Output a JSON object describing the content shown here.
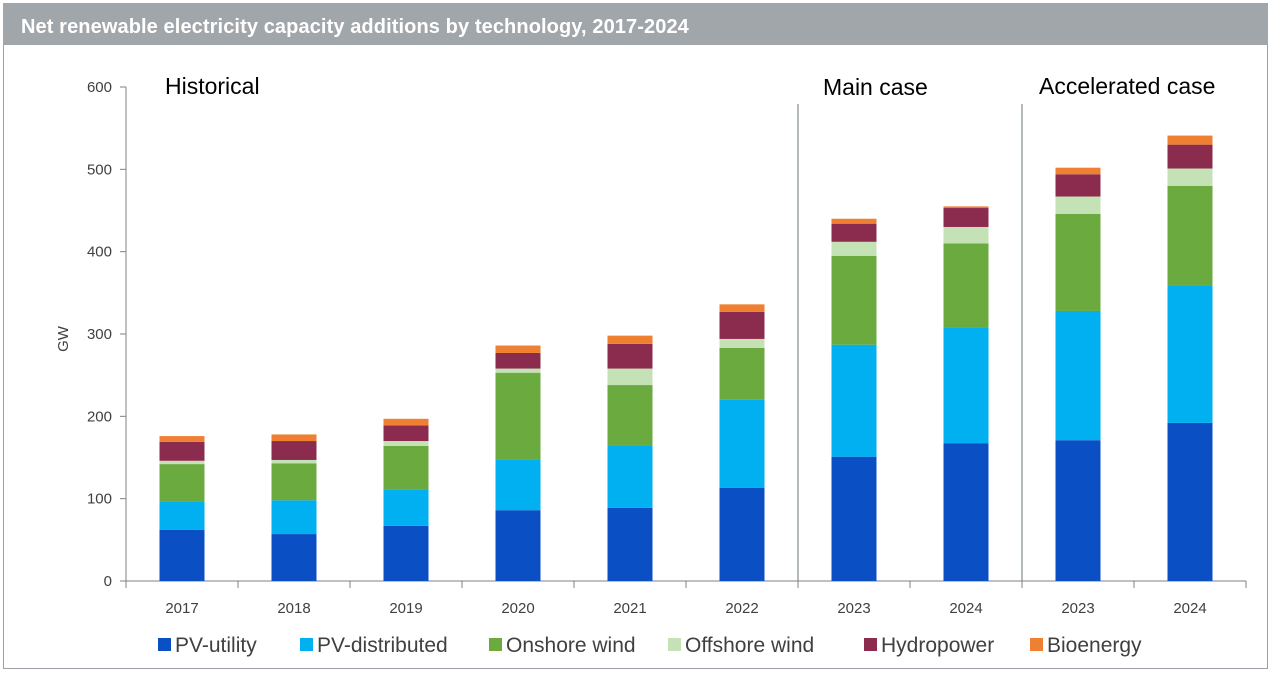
{
  "title": "Net renewable electricity capacity additions by technology, 2017-2024",
  "chart_data": {
    "type": "bar",
    "stacked": true,
    "title": "Net renewable electricity capacity additions by technology, 2017-2024",
    "ylabel": "GW",
    "xlabel": "",
    "ylim": [
      0,
      600
    ],
    "yticks": [
      0,
      100,
      200,
      300,
      400,
      500,
      600
    ],
    "grid": false,
    "legend_position": "bottom",
    "categories": [
      "2017",
      "2018",
      "2019",
      "2020",
      "2021",
      "2022",
      "2023",
      "2024",
      "2023",
      "2024"
    ],
    "sections": [
      {
        "label": "Historical",
        "start": 0,
        "end": 5
      },
      {
        "label": "Main case",
        "start": 6,
        "end": 7
      },
      {
        "label": "Accelerated case",
        "start": 8,
        "end": 9
      }
    ],
    "series": [
      {
        "name": "PV-utility",
        "color": "#0a4fc4",
        "values": [
          62,
          57,
          67,
          86,
          89,
          113,
          151,
          167,
          171,
          192
        ]
      },
      {
        "name": "PV-distributed",
        "color": "#00b0f0",
        "values": [
          35,
          41,
          44,
          62,
          75,
          107,
          136,
          141,
          157,
          167
        ]
      },
      {
        "name": "Onshore wind",
        "color": "#6aaa3f",
        "values": [
          45,
          45,
          53,
          105,
          74,
          63,
          108,
          102,
          118,
          121
        ]
      },
      {
        "name": "Offshore wind",
        "color": "#c4e2b5",
        "values": [
          4,
          4,
          6,
          5,
          20,
          11,
          17,
          20,
          21,
          21
        ]
      },
      {
        "name": "Hydropower",
        "color": "#8b2c4e",
        "values": [
          23,
          23,
          19,
          19,
          30,
          33,
          22,
          23,
          27,
          29
        ]
      },
      {
        "name": "Bioenergy",
        "color": "#ef7f31",
        "values": [
          7,
          8,
          8,
          9,
          10,
          9,
          6,
          2,
          8,
          11
        ]
      }
    ]
  }
}
